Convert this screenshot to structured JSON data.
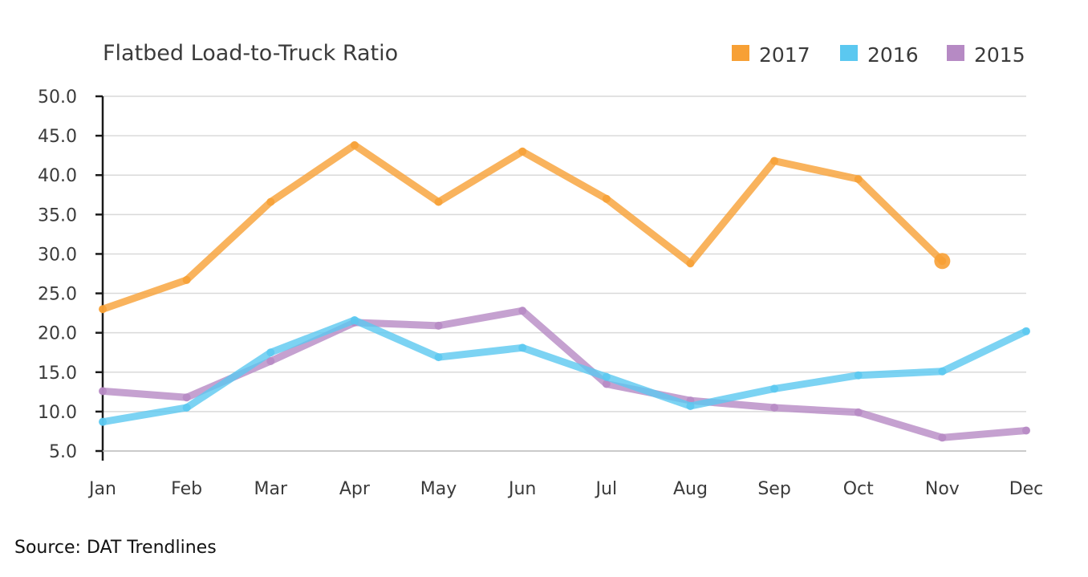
{
  "chart_data": {
    "type": "line",
    "title": "Flatbed Load-to-Truck Ratio",
    "categories": [
      "Jan",
      "Feb",
      "Mar",
      "Apr",
      "May",
      "Jun",
      "Jul",
      "Aug",
      "Sep",
      "Oct",
      "Nov",
      "Dec"
    ],
    "ylim": [
      5.0,
      50.0
    ],
    "yticks": [
      "5.0",
      "10.0",
      "15.0",
      "20.0",
      "25.0",
      "30.0",
      "35.0",
      "40.0",
      "45.0",
      "50.0"
    ],
    "grid": true,
    "legend_position": "top-right",
    "series": [
      {
        "name": "2017",
        "color": "#F7A035",
        "values": [
          23.0,
          26.7,
          36.6,
          43.8,
          36.6,
          43.0,
          37.0,
          28.8,
          41.8,
          39.5,
          29.1,
          null
        ]
      },
      {
        "name": "2016",
        "color": "#5BC8F0",
        "values": [
          8.7,
          10.5,
          17.5,
          21.6,
          16.9,
          18.1,
          14.4,
          10.7,
          12.9,
          14.6,
          15.1,
          20.2
        ]
      },
      {
        "name": "2015",
        "color": "#B68AC4",
        "values": [
          12.6,
          11.8,
          16.4,
          21.3,
          20.9,
          22.8,
          13.5,
          11.4,
          10.5,
          9.9,
          6.7,
          7.6
        ]
      }
    ]
  },
  "footer": {
    "source": "Source: DAT Trendlines"
  }
}
